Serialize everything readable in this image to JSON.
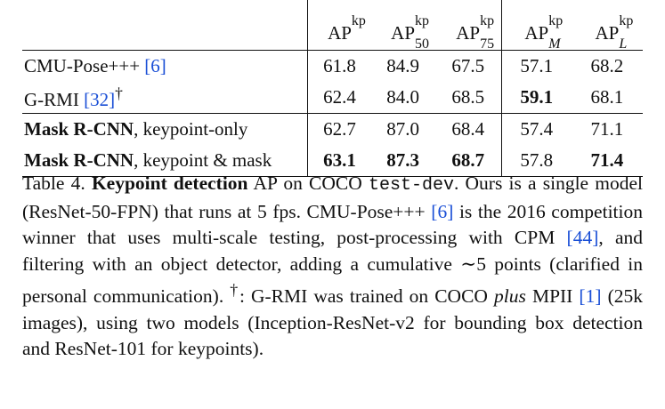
{
  "table": {
    "header": {
      "ap_base": "AP",
      "ap_sup": "kp",
      "cols": [
        {
          "sub": ""
        },
        {
          "sub": "50"
        },
        {
          "sub": "75"
        },
        {
          "sub": "M"
        },
        {
          "sub": "L"
        }
      ]
    },
    "rows": [
      {
        "method": "CMU-Pose+++",
        "cite": "[6]",
        "dagger": "",
        "values": [
          "61.8",
          "84.9",
          "67.5",
          "57.1",
          "68.2"
        ]
      },
      {
        "method": "G-RMI",
        "cite": "[32]",
        "dagger": "†",
        "values": [
          "62.4",
          "84.0",
          "68.5",
          "59.1",
          "68.1"
        ]
      },
      {
        "method_bold": "Mask R-CNN",
        "method_rest": ", keypoint-only",
        "values": [
          "62.7",
          "87.0",
          "68.4",
          "57.4",
          "71.1"
        ]
      },
      {
        "method_bold": "Mask R-CNN",
        "method_rest": ", keypoint & mask",
        "values": [
          "63.1",
          "87.3",
          "68.7",
          "57.8",
          "71.4"
        ]
      }
    ]
  },
  "caption": {
    "label": "Table 4.",
    "title": "Keypoint detection",
    "t1": " AP on COCO ",
    "mono": "test-dev",
    "t2": ". Ours is a single model (ResNet-50-FPN) that runs at 5 fps. CMU-Pose+++ ",
    "cite6": "[6]",
    "t3": " is the 2016 competition winner that uses multi-scale testing, post-processing with CPM ",
    "cite44": "[44]",
    "t4": ", and filtering with an object detector, adding a cumulative ∼5 points (clarified in personal communication). ",
    "dagger": "†",
    "t5": ": G-RMI was trained on COCO ",
    "plus": "plus",
    "t6": " MPII ",
    "cite1": "[1]",
    "t7": " (25k images), using two models (Inception-ResNet-v2 for bounding box detection and ResNet-101 for keypoints)."
  }
}
